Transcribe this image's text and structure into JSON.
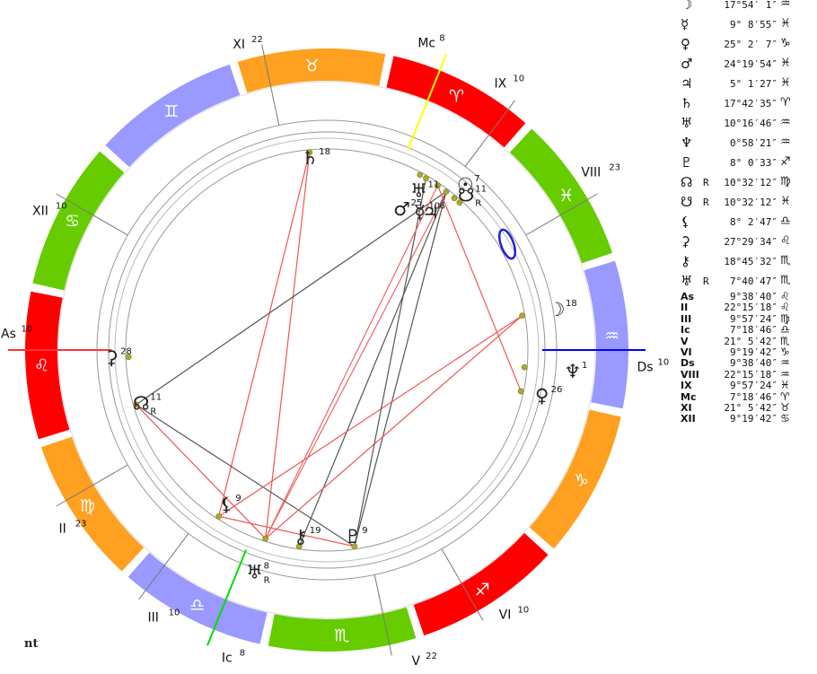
{
  "wheel": {
    "signs": [
      {
        "name": "Aries",
        "glyph": "♈",
        "color": "#ff0000"
      },
      {
        "name": "Taurus",
        "glyph": "♉",
        "color": "#ffa020"
      },
      {
        "name": "Gemini",
        "glyph": "♊",
        "color": "#9999ff"
      },
      {
        "name": "Cancer",
        "glyph": "♋",
        "color": "#66cc00"
      },
      {
        "name": "Leo",
        "glyph": "♌",
        "color": "#ff0000"
      },
      {
        "name": "Virgo",
        "glyph": "♍",
        "color": "#ffa020"
      },
      {
        "name": "Libra",
        "glyph": "♎",
        "color": "#9999ff"
      },
      {
        "name": "Scorpio",
        "glyph": "♏",
        "color": "#66cc00"
      },
      {
        "name": "Sagittarius",
        "glyph": "♐",
        "color": "#ff0000"
      },
      {
        "name": "Capricorn",
        "glyph": "♑",
        "color": "#ffa020"
      },
      {
        "name": "Aquarius",
        "glyph": "♒",
        "color": "#9999ff"
      },
      {
        "name": "Pisces",
        "glyph": "♓",
        "color": "#66cc00"
      }
    ],
    "houses": [
      {
        "label": "As",
        "deg": "10"
      },
      {
        "label": "II",
        "deg": "23"
      },
      {
        "label": "III",
        "deg": "10"
      },
      {
        "label": "Ic",
        "deg": "8"
      },
      {
        "label": "V",
        "deg": "22"
      },
      {
        "label": "VI",
        "deg": "10"
      },
      {
        "label": "Ds",
        "deg": "10"
      },
      {
        "label": "VIII",
        "deg": "23"
      },
      {
        "label": "IX",
        "deg": "10"
      },
      {
        "label": "Mc",
        "deg": "8"
      },
      {
        "label": "XI",
        "deg": "22"
      },
      {
        "label": "XII",
        "deg": "10"
      }
    ],
    "planets": [
      {
        "name": "moon",
        "glyph": "☽",
        "deg": "18",
        "r": ""
      },
      {
        "name": "mercury",
        "glyph": "☿",
        "deg": "10",
        "r": ""
      },
      {
        "name": "venus",
        "glyph": "♀",
        "deg": "26",
        "r": ""
      },
      {
        "name": "mars",
        "glyph": "♂",
        "deg": "25",
        "r": ""
      },
      {
        "name": "jupiter",
        "glyph": "♃",
        "deg": "6",
        "r": ""
      },
      {
        "name": "saturn",
        "glyph": "♄",
        "deg": "18",
        "r": ""
      },
      {
        "name": "uranus",
        "glyph": "♅",
        "deg": "11",
        "r": ""
      },
      {
        "name": "neptune",
        "glyph": "♆",
        "deg": "1",
        "r": ""
      },
      {
        "name": "pluto",
        "glyph": "♇",
        "deg": "9",
        "r": ""
      },
      {
        "name": "north-node",
        "glyph": "☊",
        "deg": "11",
        "r": "R"
      },
      {
        "name": "south-node",
        "glyph": "☋",
        "deg": "11",
        "r": "R"
      },
      {
        "name": "lilith",
        "glyph": "⚸",
        "deg": "9",
        "r": ""
      },
      {
        "name": "ceres",
        "glyph": "⚳",
        "deg": "28",
        "r": ""
      },
      {
        "name": "chiron",
        "glyph": "⚷",
        "deg": "19",
        "r": ""
      },
      {
        "name": "transneptunian",
        "glyph": "♅",
        "deg": "8",
        "r": "R"
      },
      {
        "name": "sun",
        "glyph": "☉",
        "deg": "7",
        "r": ""
      }
    ]
  },
  "footer": "nt",
  "positions_table": [
    {
      "glyph": "☽",
      "r": "",
      "pos": "17°54′ 1″",
      "sign": "♒",
      "small": false
    },
    {
      "glyph": "☿",
      "r": "",
      "pos": "9° 8′55″",
      "sign": "♓",
      "small": false
    },
    {
      "glyph": "♀",
      "r": "",
      "pos": "25° 2′ 7″",
      "sign": "♑",
      "small": false
    },
    {
      "glyph": "♂",
      "r": "",
      "pos": "24°19′54″",
      "sign": "♓",
      "small": false
    },
    {
      "glyph": "♃",
      "r": "",
      "pos": "5° 1′27″",
      "sign": "♓",
      "small": false
    },
    {
      "glyph": "♄",
      "r": "",
      "pos": "17°42′35″",
      "sign": "♈",
      "small": false
    },
    {
      "glyph": "♅",
      "r": "",
      "pos": "10°16′46″",
      "sign": "♒",
      "small": false
    },
    {
      "glyph": "♆",
      "r": "",
      "pos": "0°58′21″",
      "sign": "♒",
      "small": false
    },
    {
      "glyph": "♇",
      "r": "",
      "pos": "8° 0′33″",
      "sign": "♐",
      "small": false
    },
    {
      "glyph": "☊",
      "r": "R",
      "pos": "10°32′12″",
      "sign": "♍",
      "small": false
    },
    {
      "glyph": "☋",
      "r": "R",
      "pos": "10°32′12″",
      "sign": "♓",
      "small": false
    },
    {
      "glyph": "⚸",
      "r": "",
      "pos": "8° 2′47″",
      "sign": "♎",
      "small": false
    },
    {
      "glyph": "⚳",
      "r": "",
      "pos": "27°29′34″",
      "sign": "♌",
      "small": false
    },
    {
      "glyph": "⚷",
      "r": "",
      "pos": "18°45′32″",
      "sign": "♏",
      "small": false
    },
    {
      "glyph": "♅",
      "r": "R",
      "pos": "7°40′47″",
      "sign": "♏",
      "small": false
    },
    {
      "glyph": "As",
      "r": "",
      "pos": "9°38′40″",
      "sign": "♌",
      "small": true
    },
    {
      "glyph": "II",
      "r": "",
      "pos": "22°15′18″",
      "sign": "♌",
      "small": true
    },
    {
      "glyph": "III",
      "r": "",
      "pos": "9°57′24″",
      "sign": "♍",
      "small": true
    },
    {
      "glyph": "Ic",
      "r": "",
      "pos": "7°18′46″",
      "sign": "♎",
      "small": true
    },
    {
      "glyph": "V",
      "r": "",
      "pos": "21° 5′42″",
      "sign": "♏",
      "small": true
    },
    {
      "glyph": "VI",
      "r": "",
      "pos": "9°19′42″",
      "sign": "♑",
      "small": true
    },
    {
      "glyph": "Ds",
      "r": "",
      "pos": "9°38′40″",
      "sign": "♒",
      "small": true
    },
    {
      "glyph": "VIII",
      "r": "",
      "pos": "22°15′18″",
      "sign": "♒",
      "small": true
    },
    {
      "glyph": "IX",
      "r": "",
      "pos": "9°57′24″",
      "sign": "♓",
      "small": true
    },
    {
      "glyph": "Mc",
      "r": "",
      "pos": "7°18′46″",
      "sign": "♈",
      "small": true
    },
    {
      "glyph": "XI",
      "r": "",
      "pos": "21° 5′42″",
      "sign": "♉",
      "small": true
    },
    {
      "glyph": "XII",
      "r": "",
      "pos": "9°19′42″",
      "sign": "♋",
      "small": true
    }
  ]
}
